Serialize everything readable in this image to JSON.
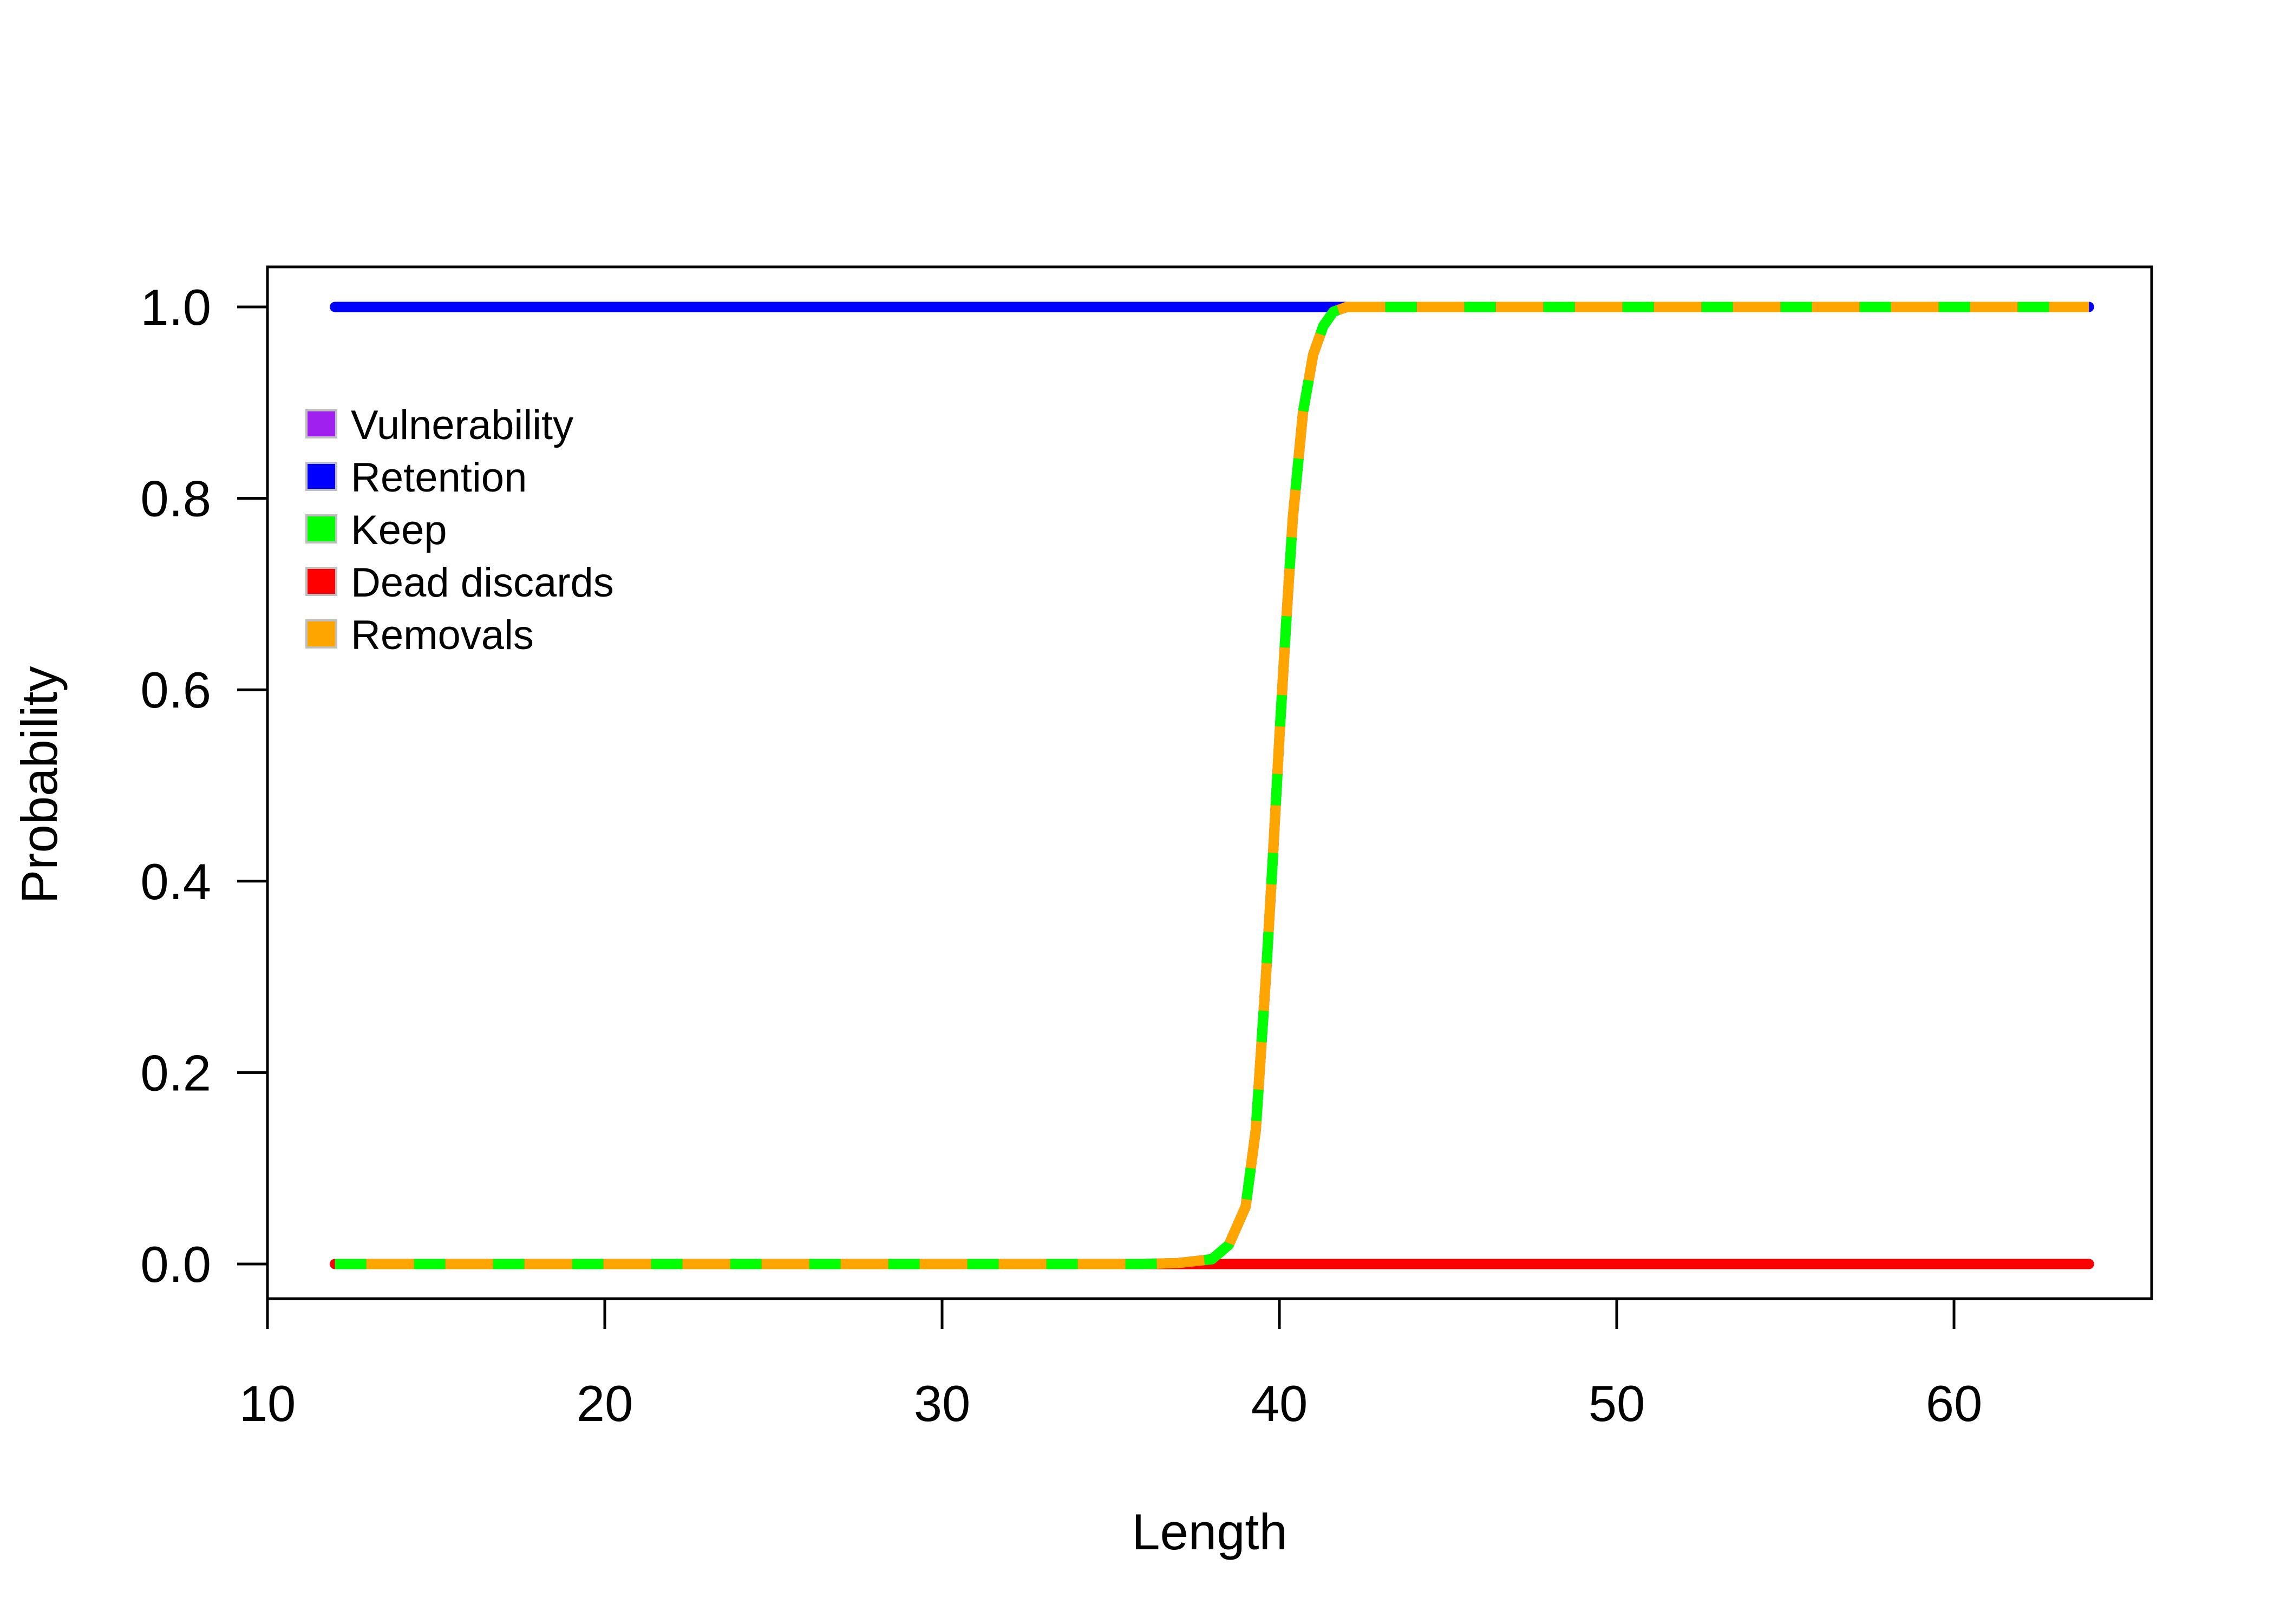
{
  "chart_data": {
    "type": "line",
    "title": "",
    "xlabel": "Length",
    "ylabel": "Probability",
    "xlim": [
      10,
      66
    ],
    "ylim": [
      0,
      1.0
    ],
    "xticks": [
      "10",
      "20",
      "30",
      "40",
      "50",
      "60"
    ],
    "yticks": [
      "0.0",
      "0.2",
      "0.4",
      "0.6",
      "0.8",
      "1.0"
    ],
    "grid": false,
    "legend_position": "top-left",
    "series": [
      {
        "name": "Vulnerability",
        "color": "#A020F0",
        "style": "solid",
        "x": [
          12,
          36,
          37,
          38,
          38.5,
          39,
          39.3,
          39.6,
          39.8,
          40,
          40.2,
          40.4,
          40.7,
          41,
          41.3,
          41.6,
          42,
          43,
          64
        ],
        "y": [
          0,
          0,
          0.001,
          0.005,
          0.02,
          0.06,
          0.14,
          0.3,
          0.42,
          0.55,
          0.67,
          0.78,
          0.89,
          0.95,
          0.98,
          0.995,
          1.0,
          1.0,
          1.0
        ]
      },
      {
        "name": "Retention",
        "color": "#0000FF",
        "style": "solid",
        "x": [
          12,
          64
        ],
        "y": [
          1,
          1
        ]
      },
      {
        "name": "Keep",
        "color": "#00FF00",
        "style": "dashed",
        "x": [
          12,
          36,
          37,
          38,
          38.5,
          39,
          39.3,
          39.6,
          39.8,
          40,
          40.2,
          40.4,
          40.7,
          41,
          41.3,
          41.6,
          42,
          43,
          64
        ],
        "y": [
          0,
          0,
          0.001,
          0.005,
          0.02,
          0.06,
          0.14,
          0.3,
          0.42,
          0.55,
          0.67,
          0.78,
          0.89,
          0.95,
          0.98,
          0.995,
          1.0,
          1.0,
          1.0
        ]
      },
      {
        "name": "Dead discards",
        "color": "#FF0000",
        "style": "solid",
        "x": [
          12,
          64
        ],
        "y": [
          0,
          0
        ]
      },
      {
        "name": "Removals",
        "color": "#FFA500",
        "style": "dashed",
        "x": [
          12,
          36,
          37,
          38,
          38.5,
          39,
          39.3,
          39.6,
          39.8,
          40,
          40.2,
          40.4,
          40.7,
          41,
          41.3,
          41.6,
          42,
          43,
          64
        ],
        "y": [
          0,
          0,
          0.001,
          0.005,
          0.02,
          0.06,
          0.14,
          0.3,
          0.42,
          0.55,
          0.67,
          0.78,
          0.89,
          0.95,
          0.98,
          0.995,
          1.0,
          1.0,
          1.0
        ]
      }
    ]
  }
}
